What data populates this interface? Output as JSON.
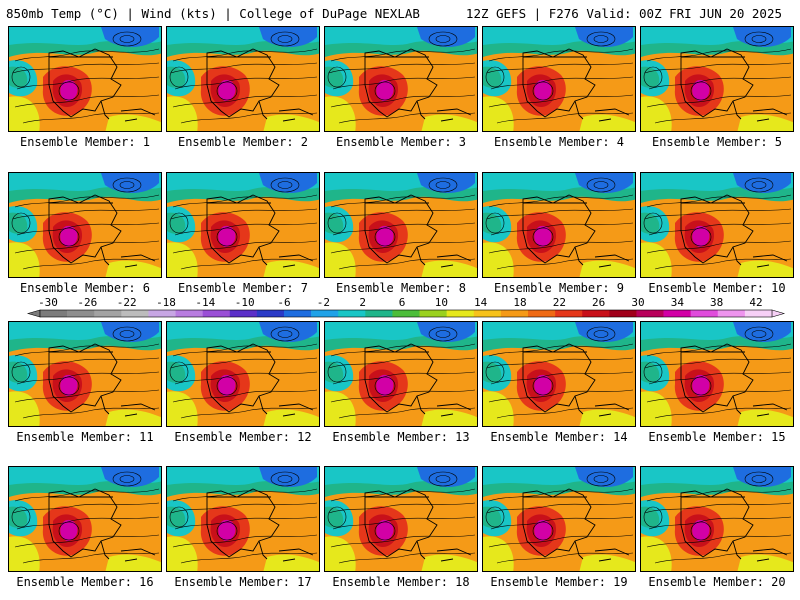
{
  "header": {
    "left_title": "850mb Temp (°C) | Wind (kts) | College of DuPage NEXLAB",
    "right_title": "12Z GEFS | F276 Valid: 00Z FRI JUN 20 2025"
  },
  "members": [
    "Ensemble Member: 1",
    "Ensemble Member: 2",
    "Ensemble Member: 3",
    "Ensemble Member: 4",
    "Ensemble Member: 5",
    "Ensemble Member: 6",
    "Ensemble Member: 7",
    "Ensemble Member: 8",
    "Ensemble Member: 9",
    "Ensemble Member: 10",
    "Ensemble Member: 11",
    "Ensemble Member: 12",
    "Ensemble Member: 13",
    "Ensemble Member: 14",
    "Ensemble Member: 15",
    "Ensemble Member: 16",
    "Ensemble Member: 17",
    "Ensemble Member: 18",
    "Ensemble Member: 19",
    "Ensemble Member: 20"
  ],
  "colorbar": {
    "tick_labels": [
      "-30",
      "-26",
      "-22",
      "-18",
      "-14",
      "-10",
      "-6",
      "-2",
      "2",
      "6",
      "10",
      "14",
      "18",
      "22",
      "26",
      "30",
      "34",
      "38",
      "42"
    ],
    "colors": [
      "#7c7c7c",
      "#8e8e8e",
      "#a3a3a3",
      "#bcbcbc",
      "#c7a6e4",
      "#b87ce0",
      "#9a4fd6",
      "#5b2fc8",
      "#2a3ac7",
      "#1e6de0",
      "#1fa2e8",
      "#19c6c6",
      "#1fb58a",
      "#4cbd3a",
      "#9ad11e",
      "#e6e81c",
      "#f7c21a",
      "#f59a17",
      "#ef6a14",
      "#e5371a",
      "#c8101a",
      "#a0001a",
      "#b8005a",
      "#d200a6",
      "#e04cdc",
      "#ee94ee",
      "#f6d0f6"
    ]
  }
}
